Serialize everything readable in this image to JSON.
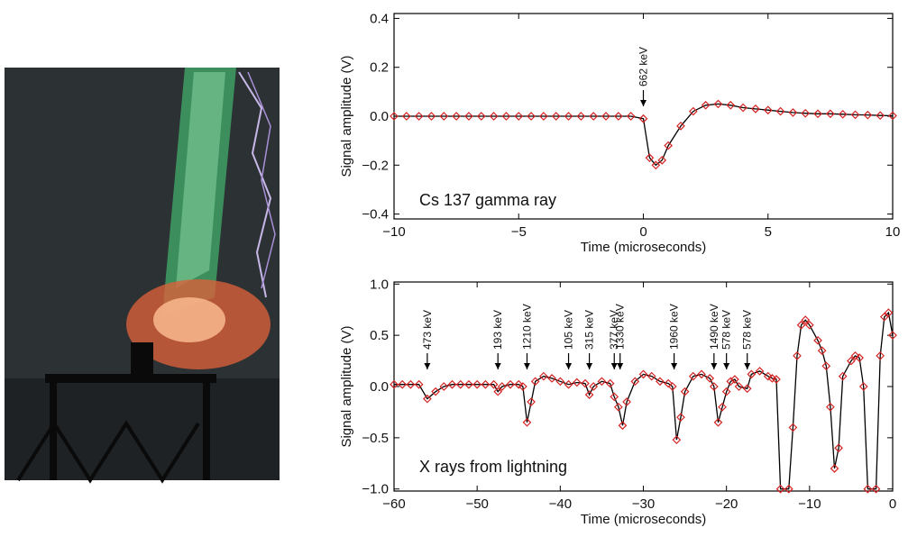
{
  "chart_data": [
    {
      "type": "line",
      "xlabel": "Time (microseconds)",
      "ylabel": "Signal amplitude (V)",
      "annotation": "Cs 137 gamma ray",
      "line_color": "#000000",
      "marker_color": "#d42222",
      "xlim": [
        -10,
        10
      ],
      "ylim": [
        -0.42,
        0.42
      ],
      "xticks": [
        {
          "value": -10,
          "label": "−10"
        },
        {
          "value": -5,
          "label": "−5"
        },
        0,
        5,
        10
      ],
      "yticks": [
        {
          "value": -0.4,
          "label": "−0.4"
        },
        {
          "value": -0.2,
          "label": "−0.2"
        },
        {
          "value": 0,
          "label": "0.0"
        },
        0.2,
        0.4
      ],
      "arrows": [
        {
          "x": 0,
          "text": "662 keV"
        }
      ],
      "x": [
        -10,
        -9.5,
        -9,
        -8.5,
        -8,
        -7.5,
        -7,
        -6.5,
        -6,
        -5.5,
        -5,
        -4.5,
        -4,
        -3.5,
        -3,
        -2.5,
        -2,
        -1.5,
        -1,
        -0.5,
        0,
        0.25,
        0.5,
        0.75,
        1,
        1.5,
        2,
        2.5,
        3,
        3.5,
        4,
        4.5,
        5,
        5.5,
        6,
        6.5,
        7,
        7.5,
        8,
        8.5,
        9,
        9.5,
        10
      ],
      "values": [
        0,
        0,
        0,
        0,
        0,
        0,
        0,
        0,
        0,
        0,
        0,
        0,
        0,
        0,
        0,
        0,
        0,
        0,
        0,
        0,
        -0.01,
        -0.17,
        -0.2,
        -0.18,
        -0.12,
        -0.04,
        0.02,
        0.045,
        0.05,
        0.045,
        0.035,
        0.03,
        0.025,
        0.02,
        0.015,
        0.012,
        0.01,
        0.01,
        0.008,
        0.006,
        0.005,
        0.003,
        0.002
      ]
    },
    {
      "type": "line",
      "xlabel": "Time (microseconds)",
      "ylabel": "Signal amplitude (V)",
      "annotation": "X rays from lightning",
      "line_color": "#000000",
      "marker_color": "#d42222",
      "xlim": [
        -60,
        0
      ],
      "ylim": [
        -1.02,
        1.02
      ],
      "xticks": [
        {
          "value": -60,
          "label": "−60"
        },
        {
          "value": -50,
          "label": "−50"
        },
        {
          "value": -40,
          "label": "−40"
        },
        {
          "value": -30,
          "label": "−30"
        },
        {
          "value": -20,
          "label": "−20"
        },
        {
          "value": -10,
          "label": "−10"
        },
        0
      ],
      "yticks": [
        {
          "value": -1,
          "label": "−1.0"
        },
        {
          "value": -0.5,
          "label": "−0.5"
        },
        {
          "value": 0,
          "label": "0.0"
        },
        0.5,
        {
          "value": 1,
          "label": "1.0"
        }
      ],
      "arrows": [
        {
          "x": -56,
          "text": "473 keV"
        },
        {
          "x": -47.5,
          "text": "193 keV"
        },
        {
          "x": -44,
          "text": "1210 keV"
        },
        {
          "x": -39,
          "text": "105 keV"
        },
        {
          "x": -36.5,
          "text": "315 keV"
        },
        {
          "x": -33.5,
          "text": "377 keV"
        },
        {
          "x": -32.8,
          "text": "1330 keV"
        },
        {
          "x": -26.3,
          "text": "1960 keV"
        },
        {
          "x": -21.5,
          "text": "1490 keV"
        },
        {
          "x": -20,
          "text": "578 keV"
        },
        {
          "x": -17.5,
          "text": "578 keV"
        }
      ],
      "x": [
        -60,
        -59,
        -58,
        -57,
        -56,
        -55,
        -54,
        -53,
        -52,
        -51,
        -50,
        -49,
        -48,
        -47.5,
        -47,
        -46,
        -45,
        -44.5,
        -44,
        -43.5,
        -43,
        -42,
        -41,
        -40,
        -39,
        -38,
        -37,
        -36.5,
        -36,
        -35,
        -34,
        -33.5,
        -33,
        -32.5,
        -32,
        -31,
        -30,
        -29,
        -28,
        -27,
        -26.5,
        -26,
        -25.5,
        -25,
        -24,
        -23,
        -22,
        -21.5,
        -21,
        -20.5,
        -20,
        -19.5,
        -19,
        -18.5,
        -17.5,
        -17,
        -16,
        -15,
        -14.5,
        -14,
        -13.5,
        -12.5,
        -12,
        -11.5,
        -11,
        -10.5,
        -10,
        -9,
        -8.5,
        -8,
        -7.5,
        -7,
        -6.5,
        -6,
        -5,
        -4.5,
        -4,
        -3.5,
        -3,
        -2,
        -1.5,
        -1,
        -0.5,
        0
      ],
      "values": [
        0.02,
        0.02,
        0.02,
        0.02,
        -0.12,
        -0.05,
        0,
        0.02,
        0.02,
        0.02,
        0.02,
        0.02,
        0.02,
        -0.05,
        0,
        0.02,
        0.02,
        0,
        -0.35,
        -0.15,
        0.05,
        0.1,
        0.08,
        0.05,
        0.02,
        0.04,
        0.03,
        -0.08,
        0,
        0.05,
        0.03,
        -0.1,
        -0.2,
        -0.38,
        -0.15,
        0.05,
        0.12,
        0.1,
        0.05,
        0.03,
        0,
        -0.52,
        -0.3,
        -0.05,
        0.1,
        0.12,
        0.08,
        0,
        -0.35,
        -0.2,
        -0.05,
        0.05,
        0.07,
        0,
        -0.02,
        0.12,
        0.15,
        0.1,
        0.08,
        0.07,
        -1,
        -1,
        -0.4,
        0.3,
        0.6,
        0.65,
        0.6,
        0.45,
        0.35,
        0.2,
        -0.2,
        -0.8,
        -0.6,
        0.1,
        0.25,
        0.3,
        0.28,
        0,
        -1,
        -1,
        0.3,
        0.68,
        0.72,
        0.5
      ]
    }
  ]
}
